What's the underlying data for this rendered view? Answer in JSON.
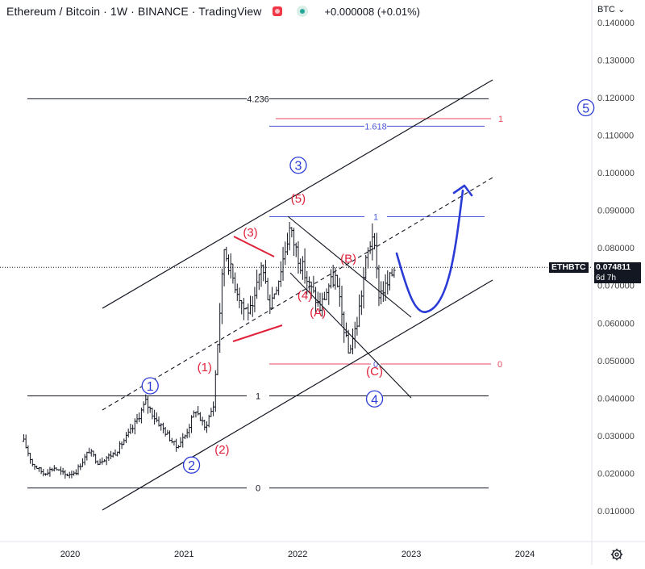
{
  "header": {
    "title": "Ethereum / Bitcoin · 1W · BINANCE · TradingView",
    "change": "+0.000008 (+0.01%)"
  },
  "axis": {
    "currency": "BTC",
    "y_ticks": [
      "0.140000",
      "0.130000",
      "0.120000",
      "0.110000",
      "0.100000",
      "0.090000",
      "0.080000",
      "0.070000",
      "0.060000",
      "0.050000",
      "0.040000",
      "0.030000",
      "0.020000",
      "0.010000"
    ],
    "x_ticks": [
      "2020",
      "2021",
      "2022",
      "2023",
      "2024"
    ]
  },
  "price_tag": {
    "symbol": "ETHBTC",
    "price": "0.074811",
    "countdown": "6d 7h"
  },
  "colors": {
    "black": "#131722",
    "red": "#e0213a",
    "blue": "#2a3bd6",
    "fib_blue": "#4a5ad9",
    "fib_red": "#e8495c",
    "axis_text": "#444444"
  },
  "chart_data": {
    "type": "ohlc-weekly",
    "symbol": "ETHBTC",
    "timeframe": "1W",
    "exchange": "BINANCE",
    "ylim": [
      0.0,
      0.145
    ],
    "xlim": [
      "2019-08-01",
      "2024-12-15"
    ],
    "last_price": 0.074811,
    "price_path": [
      [
        "2019-08-05",
        0.0285
      ],
      [
        "2019-09-02",
        0.0225
      ],
      [
        "2019-10-07",
        0.02
      ],
      [
        "2019-11-11",
        0.0215
      ],
      [
        "2019-12-16",
        0.0195
      ],
      [
        "2020-01-20",
        0.0205
      ],
      [
        "2020-03-02",
        0.026
      ],
      [
        "2020-03-30",
        0.023
      ],
      [
        "2020-05-25",
        0.0255
      ],
      [
        "2020-07-20",
        0.032
      ],
      [
        "2020-08-31",
        0.039
      ],
      [
        "2020-09-28",
        0.035
      ],
      [
        "2020-11-02",
        0.031
      ],
      [
        "2020-12-07",
        0.027
      ],
      [
        "2021-01-04",
        0.03
      ],
      [
        "2021-02-08",
        0.037
      ],
      [
        "2021-03-08",
        0.032
      ],
      [
        "2021-04-05",
        0.038
      ],
      [
        "2021-05-10",
        0.08
      ],
      [
        "2021-06-07",
        0.072
      ],
      [
        "2021-07-12",
        0.064
      ],
      [
        "2021-08-09",
        0.063
      ],
      [
        "2021-09-06",
        0.076
      ],
      [
        "2021-10-04",
        0.065
      ],
      [
        "2021-11-01",
        0.072
      ],
      [
        "2021-12-06",
        0.085
      ],
      [
        "2022-01-10",
        0.076
      ],
      [
        "2022-02-07",
        0.07
      ],
      [
        "2022-03-14",
        0.064
      ],
      [
        "2022-04-11",
        0.07
      ],
      [
        "2022-05-02",
        0.072
      ],
      [
        "2022-06-13",
        0.052
      ],
      [
        "2022-07-11",
        0.06
      ],
      [
        "2022-08-08",
        0.076
      ],
      [
        "2022-08-29",
        0.084
      ],
      [
        "2022-09-19",
        0.068
      ],
      [
        "2022-10-17",
        0.07
      ],
      [
        "2022-11-07",
        0.0748
      ]
    ],
    "horizontal_levels": [
      {
        "label": "4.236",
        "value": 0.1197,
        "color": "black"
      },
      {
        "label": "1.618",
        "value": 0.1124,
        "color": "blue"
      },
      {
        "label": "1",
        "value": 0.1144,
        "color": "red"
      },
      {
        "label": "1",
        "value": 0.0883,
        "color": "blue"
      },
      {
        "label": "0",
        "value": 0.0491,
        "color": "red"
      },
      {
        "label": "1",
        "value": 0.0406,
        "color": "black"
      },
      {
        "label": "0",
        "value": 0.0161,
        "color": "black"
      }
    ],
    "wave_labels": [
      {
        "label": "1",
        "style": "circle-blue",
        "date": "2020-09-14",
        "value": 0.0433
      },
      {
        "label": "2",
        "style": "circle-blue",
        "date": "2021-01-25",
        "value": 0.0222
      },
      {
        "label": "3",
        "style": "circle-blue",
        "date": "2022-01-03",
        "value": 0.102
      },
      {
        "label": "4",
        "style": "circle-blue",
        "date": "2022-09-05",
        "value": 0.0398
      },
      {
        "label": "5",
        "style": "circle-blue",
        "date": "2024-07-15",
        "value": 0.1173
      },
      {
        "label": "(1)",
        "style": "red",
        "date": "2021-03-08",
        "value": 0.0485
      },
      {
        "label": "(2)",
        "style": "red",
        "date": "2021-05-03",
        "value": 0.0265
      },
      {
        "label": "(3)",
        "style": "red",
        "date": "2021-08-02",
        "value": 0.0843
      },
      {
        "label": "(4)",
        "style": "red",
        "date": "2022-01-24",
        "value": 0.0676
      },
      {
        "label": "(5)",
        "style": "red",
        "date": "2022-01-03",
        "value": 0.0933
      },
      {
        "label": "(A)",
        "style": "red",
        "date": "2022-03-07",
        "value": 0.0631
      },
      {
        "label": "(B)",
        "style": "red",
        "date": "2022-06-13",
        "value": 0.0773
      },
      {
        "label": "(C)",
        "style": "red",
        "date": "2022-09-05",
        "value": 0.0474
      }
    ],
    "projection": "bullish move towards wave 5"
  }
}
